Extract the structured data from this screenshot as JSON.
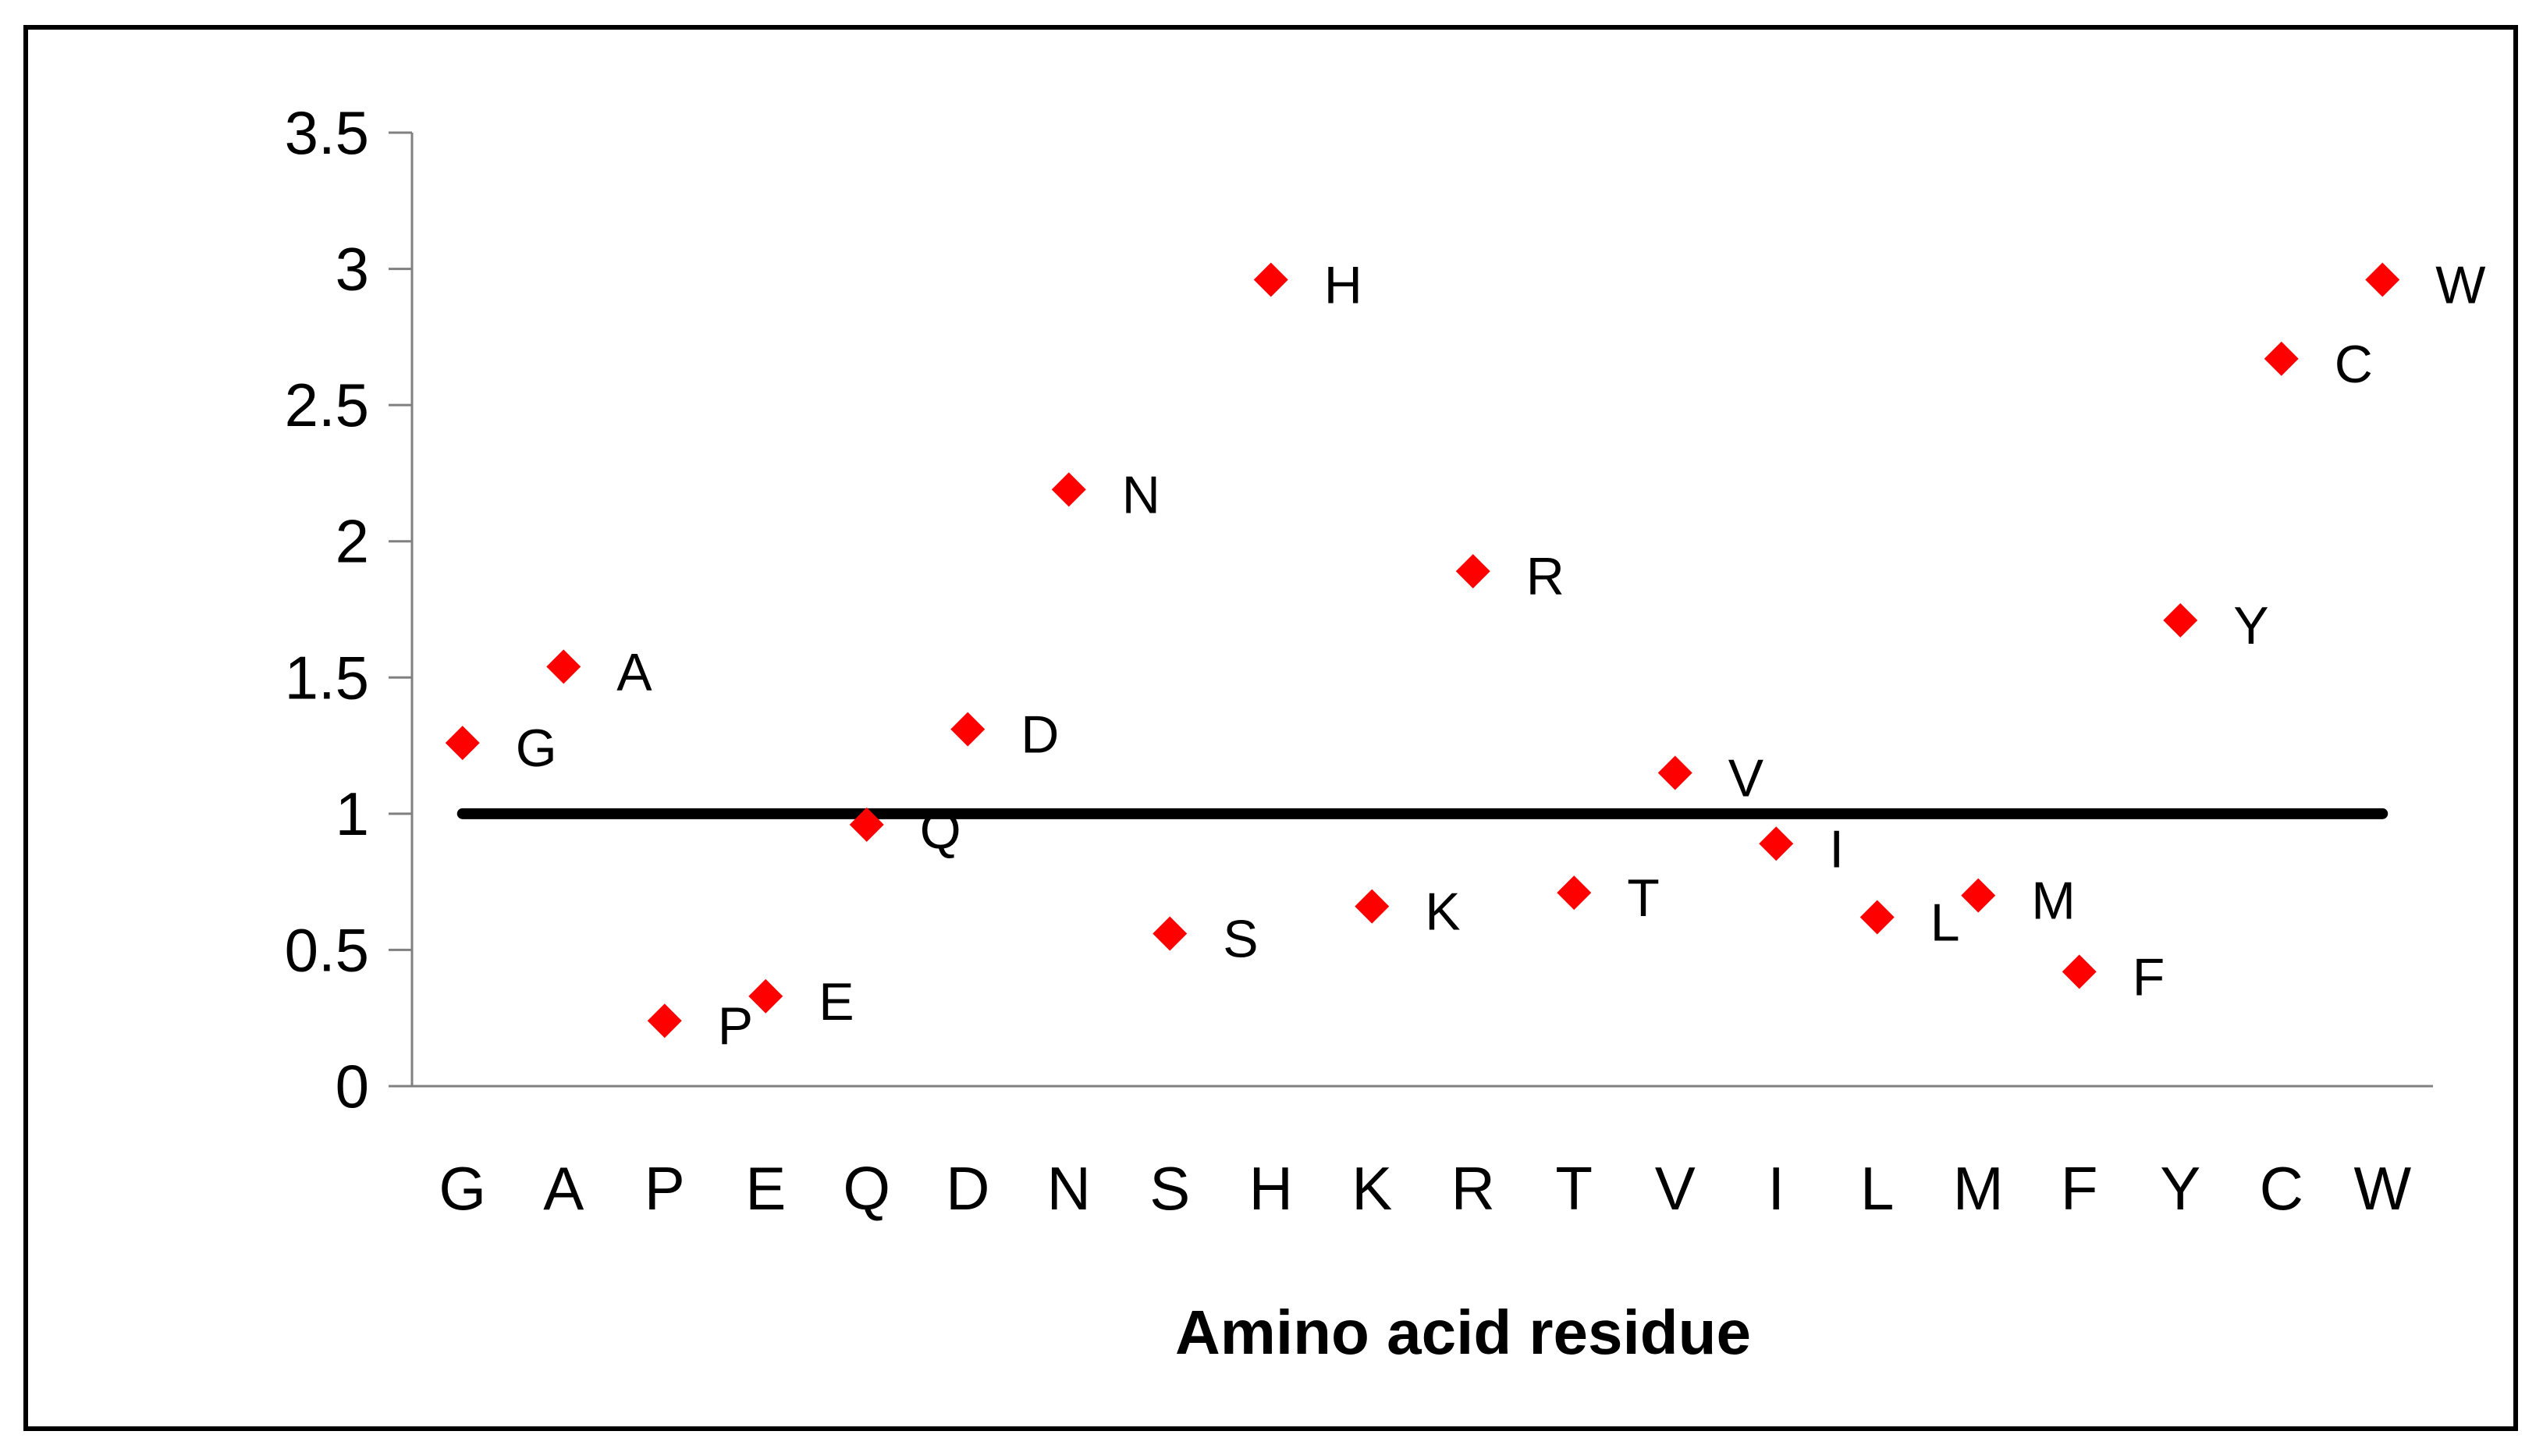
{
  "chart_data": {
    "type": "scatter",
    "title": "",
    "xlabel": "Amino acid residue",
    "ylabel": "",
    "categories": [
      "G",
      "A",
      "P",
      "E",
      "Q",
      "D",
      "N",
      "S",
      "H",
      "K",
      "R",
      "T",
      "V",
      "I",
      "L",
      "M",
      "F",
      "Y",
      "C",
      "W"
    ],
    "series": [
      {
        "values": [
          1.26,
          1.54,
          0.24,
          0.33,
          0.96,
          1.31,
          2.19,
          0.56,
          2.96,
          0.66,
          1.89,
          0.71,
          1.15,
          0.89,
          0.62,
          0.7,
          0.42,
          1.71,
          2.67,
          2.96
        ],
        "point_labels": [
          "G",
          "A",
          "P",
          "E",
          "Q",
          "D",
          "N",
          "S",
          "H",
          "K",
          "R",
          "T",
          "V",
          "I",
          "L",
          "M",
          "F",
          "Y",
          "C",
          "W"
        ]
      }
    ],
    "reference_line": {
      "y": 1
    },
    "ylim": [
      0,
      3.5
    ],
    "yticks": [
      "0",
      "0.5",
      "1",
      "1.5",
      "2",
      "2.5",
      "3",
      "3.5"
    ],
    "grid": false,
    "legend": "none",
    "colors": {
      "marker": "#ff0000",
      "reference_line": "#000000",
      "axis": "#808080",
      "frame": "#000000"
    }
  }
}
